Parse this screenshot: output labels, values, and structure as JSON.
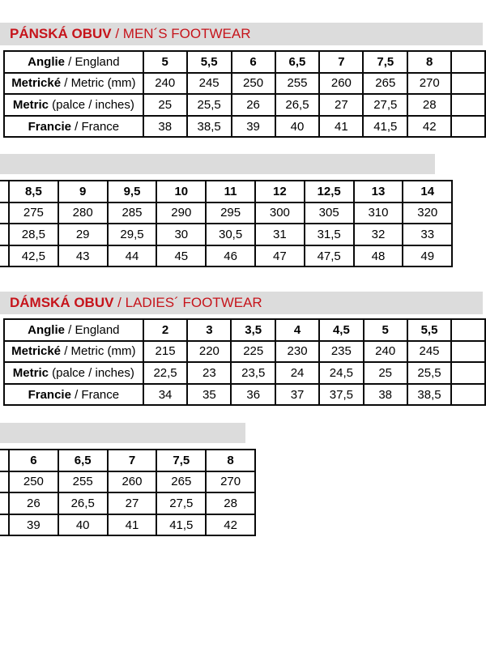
{
  "colors": {
    "accent_red": "#c6141b",
    "bar_gray": "#dcdcdc",
    "border": "#0a0a0a"
  },
  "mens": {
    "heading": {
      "czech": "PÁNSKÁ OBUV",
      "separator": " / ",
      "english": "MEN´S FOOTWEAR"
    },
    "main_table": {
      "row_labels": [
        {
          "b": "Anglie",
          "r": " / England"
        },
        {
          "b": "Metrické",
          "r": " / Metric (mm)"
        },
        {
          "b": "Metric",
          "r": " (palce / inches)"
        },
        {
          "b": "Francie",
          "r": " / France"
        }
      ],
      "columns": [
        "5",
        "5,5",
        "6",
        "6,5",
        "7",
        "7,5",
        "8"
      ],
      "rows": [
        [
          "240",
          "245",
          "250",
          "255",
          "260",
          "265",
          "270"
        ],
        [
          "25",
          "25,5",
          "26",
          "26,5",
          "27",
          "27,5",
          "28"
        ],
        [
          "38",
          "38,5",
          "39",
          "40",
          "41",
          "41,5",
          "42"
        ]
      ]
    },
    "cont_table": {
      "columns": [
        "8,5",
        "9",
        "9,5",
        "10",
        "11",
        "12",
        "12,5",
        "13",
        "14"
      ],
      "rows": [
        [
          "275",
          "280",
          "285",
          "290",
          "295",
          "300",
          "305",
          "310",
          "320"
        ],
        [
          "28,5",
          "29",
          "29,5",
          "30",
          "30,5",
          "31",
          "31,5",
          "32",
          "33"
        ],
        [
          "42,5",
          "43",
          "44",
          "45",
          "46",
          "47",
          "47,5",
          "48",
          "49"
        ]
      ]
    }
  },
  "ladies": {
    "heading": {
      "czech": "DÁMSKÁ OBUV",
      "separator": " / ",
      "english": "LADIES´ FOOTWEAR"
    },
    "main_table": {
      "row_labels": [
        {
          "b": "Anglie",
          "r": " / England"
        },
        {
          "b": "Metrické",
          "r": " / Metric (mm)"
        },
        {
          "b": "Metric",
          "r": " (palce / inches)"
        },
        {
          "b": "Francie",
          "r": " / France"
        }
      ],
      "columns": [
        "2",
        "3",
        "3,5",
        "4",
        "4,5",
        "5",
        "5,5"
      ],
      "rows": [
        [
          "215",
          "220",
          "225",
          "230",
          "235",
          "240",
          "245"
        ],
        [
          "22,5",
          "23",
          "23,5",
          "24",
          "24,5",
          "25",
          "25,5"
        ],
        [
          "34",
          "35",
          "36",
          "37",
          "37,5",
          "38",
          "38,5"
        ]
      ]
    },
    "cont_table": {
      "columns": [
        "6",
        "6,5",
        "7",
        "7,5",
        "8"
      ],
      "rows": [
        [
          "250",
          "255",
          "260",
          "265",
          "270"
        ],
        [
          "26",
          "26,5",
          "27",
          "27,5",
          "28"
        ],
        [
          "39",
          "40",
          "41",
          "41,5",
          "42"
        ]
      ]
    }
  }
}
